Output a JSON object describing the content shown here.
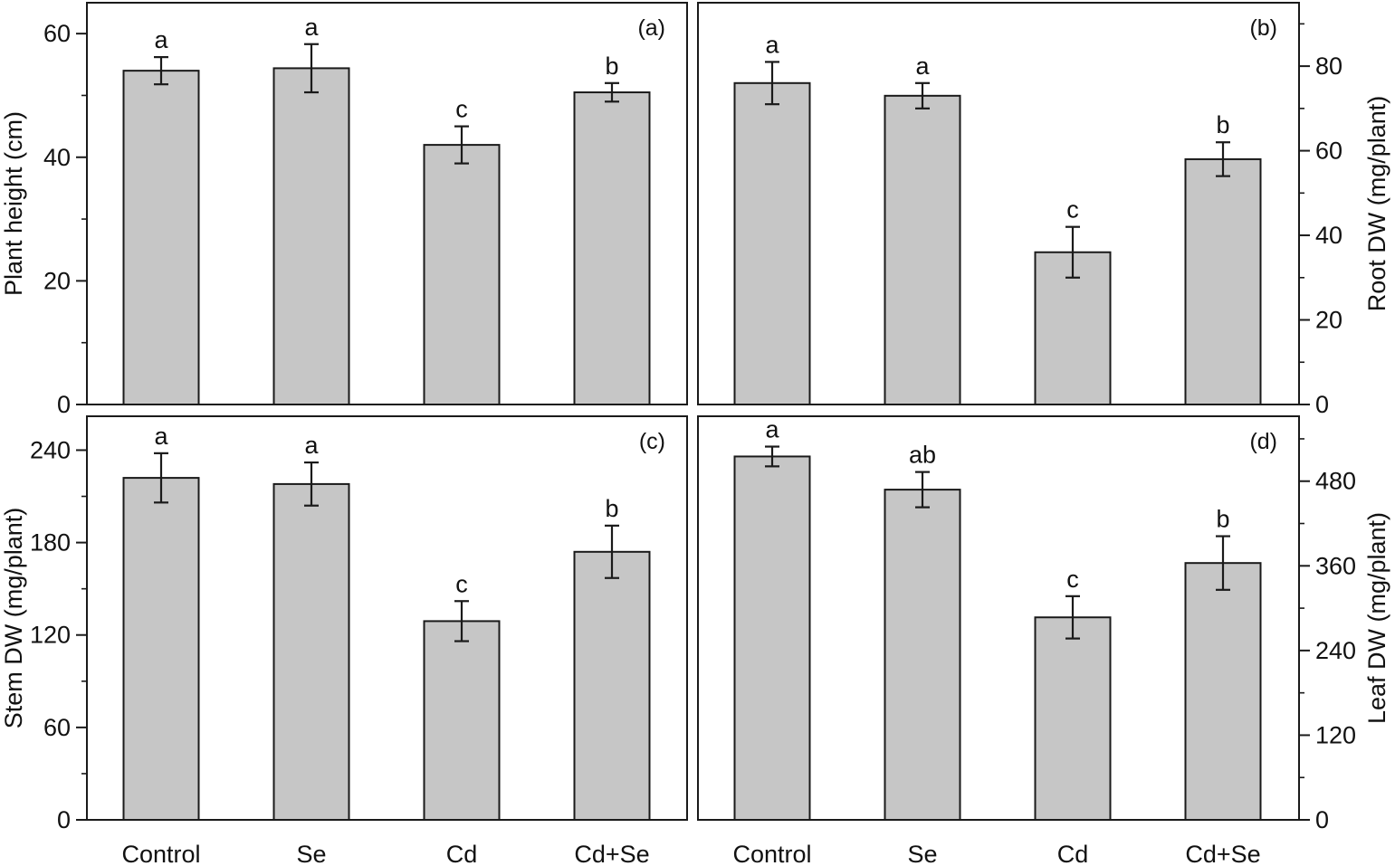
{
  "figure": {
    "categories": [
      "Control",
      "Se",
      "Cd",
      "Cd+Se"
    ]
  },
  "chart_data": [
    {
      "type": "bar",
      "panel_label": "(a)",
      "title": "",
      "xlabel": "",
      "ylabel": "Plant height (cm)",
      "y_axis_side": "left",
      "categories": [
        "Control",
        "Se",
        "Cd",
        "Cd+Se"
      ],
      "values": [
        54.0,
        54.4,
        42.0,
        50.5
      ],
      "errors": [
        2.2,
        3.9,
        3.0,
        1.5
      ],
      "significance": [
        "a",
        "a",
        "c",
        "b"
      ],
      "ylim": [
        0,
        65
      ],
      "yticks": [
        0,
        20,
        40,
        60
      ],
      "minor_tick_step": 10,
      "grid": false,
      "bar_color": "#c6c6c6"
    },
    {
      "type": "bar",
      "panel_label": "(b)",
      "title": "",
      "xlabel": "",
      "ylabel": "Root DW (mg/plant)",
      "y_axis_side": "right",
      "categories": [
        "Control",
        "Se",
        "Cd",
        "Cd+Se"
      ],
      "values": [
        76.0,
        73.0,
        36.0,
        58.0
      ],
      "errors": [
        5.0,
        3.0,
        6.0,
        4.0
      ],
      "significance": [
        "a",
        "a",
        "c",
        "b"
      ],
      "ylim": [
        0,
        95
      ],
      "yticks": [
        0,
        20,
        40,
        60,
        80
      ],
      "minor_tick_step": 10,
      "grid": false,
      "bar_color": "#c6c6c6"
    },
    {
      "type": "bar",
      "panel_label": "(c)",
      "title": "",
      "xlabel": "",
      "ylabel": "Stem DW (mg/plant)",
      "y_axis_side": "left",
      "categories": [
        "Control",
        "Se",
        "Cd",
        "Cd+Se"
      ],
      "values": [
        222.0,
        218.0,
        129.0,
        174.0
      ],
      "errors": [
        16.0,
        14.0,
        13.0,
        17.0
      ],
      "significance": [
        "a",
        "a",
        "c",
        "b"
      ],
      "ylim": [
        0,
        262
      ],
      "yticks": [
        0,
        60,
        120,
        180,
        240
      ],
      "minor_tick_step": 30,
      "grid": false,
      "bar_color": "#c6c6c6"
    },
    {
      "type": "bar",
      "panel_label": "(d)",
      "title": "",
      "xlabel": "",
      "ylabel": "Leaf DW (mg/plant)",
      "y_axis_side": "right",
      "categories": [
        "Control",
        "Se",
        "Cd",
        "Cd+Se"
      ],
      "values": [
        515.0,
        468.0,
        287.0,
        364.0
      ],
      "errors": [
        14.0,
        25.0,
        30.0,
        38.0
      ],
      "significance": [
        "a",
        "ab",
        "c",
        "b"
      ],
      "ylim": [
        0,
        572
      ],
      "yticks": [
        0,
        120,
        240,
        360,
        480
      ],
      "minor_tick_step": 60,
      "grid": false,
      "bar_color": "#c6c6c6"
    }
  ]
}
